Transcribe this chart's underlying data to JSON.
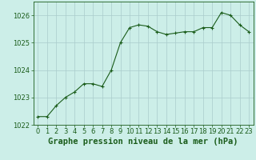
{
  "x": [
    0,
    1,
    2,
    3,
    4,
    5,
    6,
    7,
    8,
    9,
    10,
    11,
    12,
    13,
    14,
    15,
    16,
    17,
    18,
    19,
    20,
    21,
    22,
    23
  ],
  "y": [
    1022.3,
    1022.3,
    1022.7,
    1023.0,
    1023.2,
    1023.5,
    1023.5,
    1023.4,
    1024.0,
    1025.0,
    1025.55,
    1025.65,
    1025.6,
    1025.4,
    1025.3,
    1025.35,
    1025.4,
    1025.4,
    1025.55,
    1025.55,
    1026.1,
    1026.0,
    1025.65,
    1025.4
  ],
  "line_color": "#1a5c1a",
  "marker": "+",
  "marker_size": 3,
  "marker_lw": 0.8,
  "line_width": 0.8,
  "background_color": "#cceee8",
  "grid_color": "#aacccc",
  "title": "Graphe pression niveau de la mer (hPa)",
  "ylim": [
    1022.0,
    1026.5
  ],
  "xlim": [
    -0.5,
    23.5
  ],
  "yticks": [
    1022,
    1023,
    1024,
    1025,
    1026
  ],
  "xticks": [
    0,
    1,
    2,
    3,
    4,
    5,
    6,
    7,
    8,
    9,
    10,
    11,
    12,
    13,
    14,
    15,
    16,
    17,
    18,
    19,
    20,
    21,
    22,
    23
  ],
  "title_fontsize": 7.5,
  "tick_fontsize": 6,
  "figsize": [
    3.2,
    2.0
  ],
  "dpi": 100
}
